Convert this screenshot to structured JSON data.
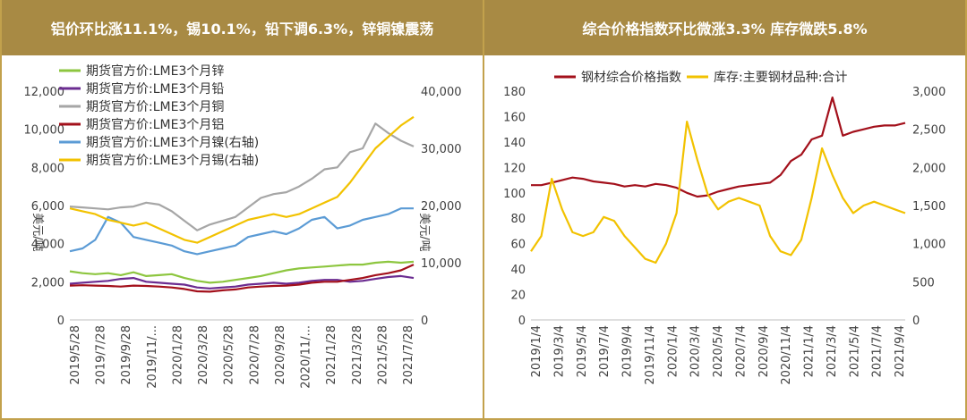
{
  "panels": [
    {
      "title": "铝价环比涨11.1%，锡10.1%，铅下调6.3%，锌铜镍震荡"
    },
    {
      "title": "综合价格指数环比微涨3.3% 库存微跌5.8%"
    }
  ],
  "chart_data": [
    {
      "type": "line",
      "title": "铝价环比涨11.1%，锡10.1%，铅下调6.3%，锌铜镍震荡",
      "ylabel": "美元/吨",
      "y2label": "美元/吨",
      "ylim": [
        0,
        12000
      ],
      "y2lim": [
        0,
        40000
      ],
      "yticks": [
        "0",
        "2,000",
        "4,000",
        "6,000",
        "8,000",
        "10,000",
        "12,000"
      ],
      "y2ticks": [
        "0",
        "10,000",
        "20,000",
        "30,000",
        "40,000"
      ],
      "xlabels": [
        "2019/5/28",
        "2019/7/28",
        "2019/9/28",
        "2019/11/...",
        "2020/1/28",
        "2020/3/28",
        "2020/5/28",
        "2020/7/28",
        "2020/9/28",
        "2020/11/...",
        "2021/1/28",
        "2021/3/28",
        "2021/5/28",
        "2021/7/28"
      ],
      "legend_position": "top-left",
      "series": [
        {
          "name": "期货官方价:LME3个月锌",
          "color": "#8dc63f",
          "axis": "left",
          "values": [
            2550,
            2450,
            2400,
            2450,
            2350,
            2500,
            2300,
            2350,
            2400,
            2200,
            2050,
            1950,
            2000,
            2100,
            2200,
            2300,
            2450,
            2600,
            2700,
            2750,
            2800,
            2850,
            2900,
            2900,
            3000,
            3050,
            3000,
            3050
          ]
        },
        {
          "name": "期货官方价:LME3个月铅",
          "color": "#6b2c91",
          "axis": "left",
          "values": [
            1900,
            1950,
            2000,
            2050,
            2150,
            2200,
            2000,
            1950,
            1900,
            1850,
            1700,
            1650,
            1700,
            1750,
            1850,
            1900,
            1950,
            1900,
            1950,
            2050,
            2100,
            2100,
            2000,
            2050,
            2150,
            2250,
            2300,
            2200
          ]
        },
        {
          "name": "期货官方价:LME3个月铜",
          "color": "#a6a6a6",
          "axis": "left",
          "values": [
            5950,
            5900,
            5850,
            5800,
            5900,
            5950,
            6150,
            6050,
            5700,
            5200,
            4700,
            5000,
            5200,
            5400,
            5900,
            6400,
            6600,
            6700,
            7000,
            7400,
            7900,
            8000,
            8800,
            9000,
            10300,
            9800,
            9400,
            9100
          ]
        },
        {
          "name": "期货官方价:LME3个月铝",
          "color": "#a3101b",
          "axis": "left",
          "values": [
            1800,
            1820,
            1800,
            1780,
            1750,
            1800,
            1780,
            1750,
            1700,
            1620,
            1500,
            1480,
            1550,
            1600,
            1700,
            1750,
            1780,
            1800,
            1850,
            1950,
            2000,
            2000,
            2100,
            2200,
            2350,
            2450,
            2600,
            2900
          ]
        },
        {
          "name": "期货官方价:LME3个月镍(右轴)",
          "color": "#5b9bd5",
          "axis": "right",
          "values": [
            12000,
            12500,
            14000,
            18000,
            17000,
            14500,
            14000,
            13500,
            13000,
            12000,
            11500,
            12000,
            12500,
            13000,
            14500,
            15000,
            15500,
            15000,
            16000,
            17500,
            18000,
            16000,
            16500,
            17500,
            18000,
            18500,
            19500,
            19500
          ]
        },
        {
          "name": "期货官方价:LME3个月锡(右轴)",
          "color": "#f2c200",
          "axis": "right",
          "values": [
            19500,
            19000,
            18500,
            17500,
            17000,
            16500,
            17000,
            16000,
            15000,
            14000,
            13500,
            14500,
            15500,
            16500,
            17500,
            18000,
            18500,
            18000,
            18500,
            19500,
            20500,
            21500,
            24000,
            27000,
            30000,
            32000,
            34000,
            35500
          ]
        }
      ]
    },
    {
      "type": "line",
      "title": "综合价格指数环比微涨3.3% 库存微跌5.8%",
      "ylim": [
        0,
        180
      ],
      "y2lim": [
        0,
        3000
      ],
      "yticks": [
        "0",
        "20",
        "40",
        "60",
        "80",
        "100",
        "120",
        "140",
        "160",
        "180"
      ],
      "y2ticks": [
        "0",
        "500",
        "1,000",
        "1,500",
        "2,000",
        "2,500",
        "3,000"
      ],
      "xlabels": [
        "2019/1/4",
        "2019/3/4",
        "2019/5/4",
        "2019/7/4",
        "2019/9/4",
        "2019/11/4",
        "2020/1/4",
        "2020/3/4",
        "2020/5/4",
        "2020/7/4",
        "2020/9/4",
        "2020/11/4",
        "2021/1/4",
        "2021/3/4",
        "2021/5/4",
        "2021/7/4",
        "2021/9/4"
      ],
      "legend_position": "top",
      "series": [
        {
          "name": "钢材综合价格指数",
          "color": "#a3101b",
          "axis": "left",
          "values": [
            106,
            106,
            108,
            110,
            112,
            111,
            109,
            108,
            107,
            105,
            106,
            105,
            107,
            106,
            104,
            100,
            97,
            98,
            101,
            103,
            105,
            106,
            107,
            108,
            114,
            125,
            130,
            142,
            145,
            175,
            145,
            148,
            150,
            152,
            153,
            153,
            155
          ]
        },
        {
          "name": "库存:主要钢材品种:合计",
          "color": "#f2c200",
          "axis": "right",
          "values": [
            900,
            1100,
            1850,
            1450,
            1150,
            1100,
            1150,
            1350,
            1300,
            1100,
            950,
            800,
            750,
            1000,
            1400,
            2600,
            2100,
            1650,
            1450,
            1550,
            1600,
            1550,
            1500,
            1100,
            900,
            850,
            1050,
            1600,
            2250,
            1900,
            1600,
            1400,
            1500,
            1550,
            1500,
            1450,
            1400
          ]
        }
      ]
    }
  ]
}
